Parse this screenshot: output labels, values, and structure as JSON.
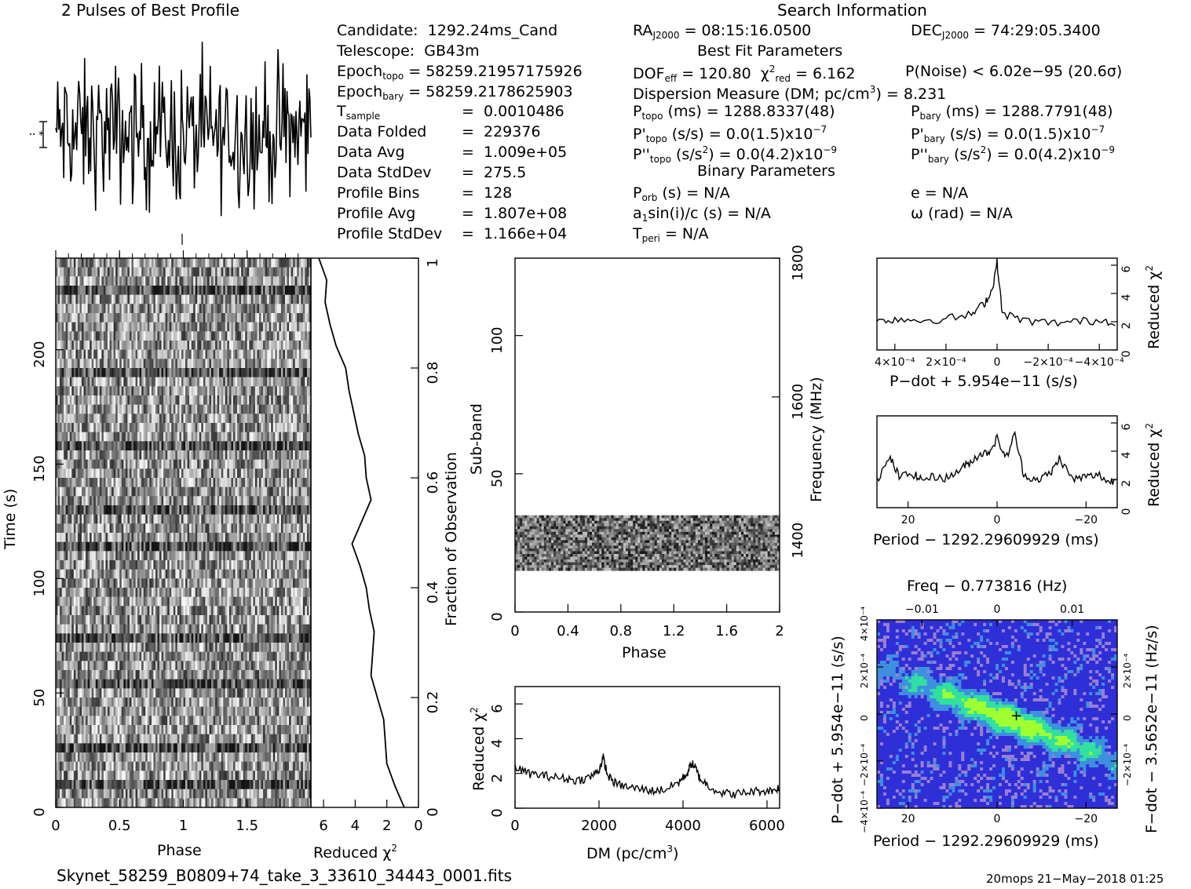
{
  "colors": {
    "ink": "#000000",
    "panel_bg": "#ffffff",
    "heat_low": "#2f2fd8",
    "heat_mid": "#3f8fe0",
    "heat_high": "#30e0a0",
    "heat_peak": "#a0ff30",
    "marker": "#000000"
  },
  "header": {
    "profile_title": "2 Pulses of Best Profile",
    "search_title": "Search Information",
    "best_fit_title": "Best Fit Parameters",
    "binary_title": "Binary Parameters"
  },
  "info_left": [
    {
      "label": "Candidate:",
      "value": "1292.24ms_Cand"
    },
    {
      "label": "Telescope:",
      "value": "GB43m"
    },
    {
      "label": "Epoch",
      "sub": "topo",
      "value": "= 58259.21957175926"
    },
    {
      "label": "Epoch",
      "sub": "bary",
      "value": "= 58259.2178625903"
    },
    {
      "label": "T",
      "sub": "sample",
      "value": "0.0010486"
    },
    {
      "label": "Data Folded",
      "value": "229376"
    },
    {
      "label": "Data Avg",
      "value": "1.009e+05"
    },
    {
      "label": "Data StdDev",
      "value": "275.5"
    },
    {
      "label": "Profile Bins",
      "value": "128"
    },
    {
      "label": "Profile Avg",
      "value": "1.807e+08"
    },
    {
      "label": "Profile StdDev",
      "value": "1.166e+04"
    }
  ],
  "info_right": {
    "ra": "= 08:15:16.0500",
    "dec": "= 74:29:05.3400",
    "dof": "= 120.80",
    "chi2": "= 6.162",
    "pnoise": "P(Noise) < 6.02e−95   (20.6σ)",
    "dm": "Dispersion Measure (DM; pc/cm",
    "dm_value": ") = 8.231",
    "ptopo": "(ms) =   1288.8337(48)",
    "pbary": "(ms) =   1288.7791(48)",
    "pdot_topo": "(s/s) = 0.0(1.5)x10",
    "pdot_bary": "(s/s) = 0.0(1.5)x10",
    "pddot_topo": "(s/s",
    "pddot_topo_tail": ") = 0.0(4.2)x10",
    "pddot_bary": "(s/s",
    "pddot_bary_tail": ") = 0.0(4.2)x10",
    "porb": "(s) = N/A",
    "ecc": "e = N/A",
    "a1": "a",
    "a1_tail": "sin(i)/c (s) = N/A",
    "omega": "ω (rad) = N/A",
    "tperi": "= N/A"
  },
  "footer": {
    "filename": "Skynet_58259_B0809+74_take_3_33610_34443_0001.fits",
    "stamp": "20mops 21−May−2018 01:25"
  },
  "axes": {
    "time_label": "Time (s)",
    "phase_label": "Phase",
    "redchi_label": "Reduced χ",
    "fraction_label": "Fraction of Observation",
    "subband_label": "Sub-band",
    "freq_label": "Frequency (MHz)",
    "dm_label": "DM (pc/cm",
    "pdot_label": "P−dot + 5.954e−11 (s/s)",
    "period_label": "Period − 1292.29609929 (ms)",
    "freq_top_label": "Freq − 0.773816 (Hz)",
    "fdot_label": "F−dot − 3.5652e−11 (Hz/s)"
  },
  "chart_data": [
    {
      "type": "line",
      "name": "profile",
      "title": "2 Pulses of Best Profile",
      "x_range": [
        0,
        2
      ],
      "points": 256
    },
    {
      "type": "heatmap",
      "name": "time-phase",
      "xlabel": "Phase",
      "ylabel": "Time (s)",
      "xticks": [
        "0",
        "0.5",
        "1",
        "1.5"
      ],
      "yticks": [
        "0",
        "50",
        "100",
        "150",
        "200"
      ],
      "xlim": [
        0,
        2
      ],
      "ylim": [
        0,
        240
      ]
    },
    {
      "type": "line",
      "name": "reduced-chi2-vs-time",
      "xlabel": "Reduced χ²",
      "xticks": [
        "6",
        "4",
        "2",
        "0"
      ],
      "ylabel": "Fraction of Observation",
      "yticks": [
        "0",
        "0.2",
        "0.4",
        "0.6",
        "0.8",
        "1"
      ],
      "x": [
        6.3,
        5.8,
        5.9,
        5.6,
        5.2,
        4.6,
        4.4,
        4.1,
        3.8,
        3.4,
        3.3,
        3.0,
        3.6,
        4.2,
        3.7,
        3.3,
        3.1,
        2.8,
        2.9,
        3.0,
        2.6,
        2.2,
        2.1,
        2.0,
        1.5,
        0.9
      ],
      "y": [
        1.0,
        0.96,
        0.92,
        0.88,
        0.84,
        0.8,
        0.76,
        0.72,
        0.68,
        0.64,
        0.6,
        0.56,
        0.52,
        0.48,
        0.44,
        0.4,
        0.36,
        0.32,
        0.28,
        0.24,
        0.2,
        0.16,
        0.12,
        0.08,
        0.04,
        0.0
      ]
    },
    {
      "type": "heatmap",
      "name": "subband-phase",
      "xlabel": "Phase",
      "ylabel": "Sub-band",
      "xticks": [
        "0",
        "0.4",
        "0.8",
        "1.2",
        "1.6",
        "2"
      ],
      "yticks": [
        "0",
        "50",
        "100"
      ],
      "freq_ticks": [
        "1400",
        "1600",
        "1800"
      ],
      "xlim": [
        0,
        2
      ],
      "ylim": [
        0,
        128
      ],
      "filled_band": [
        15,
        35
      ]
    },
    {
      "type": "line",
      "name": "reduced-chi2-vs-dm",
      "xlabel": "DM (pc/cm³)",
      "ylabel": "Reduced χ²",
      "xticks": [
        "0",
        "2000",
        "4000",
        "6000"
      ],
      "yticks": [
        "0",
        "2",
        "4",
        "6"
      ],
      "xlim": [
        0,
        6300
      ],
      "ylim": [
        0,
        7
      ],
      "x": [
        0,
        300,
        600,
        900,
        1200,
        1500,
        1800,
        2000,
        2100,
        2200,
        2400,
        2700,
        3000,
        3300,
        3600,
        3900,
        4100,
        4200,
        4300,
        4400,
        4600,
        4900,
        5200,
        5500,
        5800,
        6100,
        6300
      ],
      "y": [
        2.4,
        2.0,
        1.9,
        1.8,
        1.7,
        1.6,
        1.8,
        2.2,
        2.9,
        1.9,
        1.4,
        1.2,
        1.1,
        1.0,
        1.1,
        1.5,
        2.0,
        2.6,
        2.3,
        1.7,
        1.3,
        0.9,
        0.8,
        0.9,
        1.0,
        1.0,
        1.2
      ]
    },
    {
      "type": "line",
      "name": "reduced-chi2-vs-pdot",
      "xlabel": "P−dot + 5.954e−11 (s/s)",
      "ylabel": "Reduced χ²",
      "xticks": [
        "4×10⁻⁴",
        "2×10⁻⁴",
        "0",
        "−2×10⁻⁴",
        "−4×10⁻⁴"
      ],
      "yticks": [
        "0",
        "2",
        "4",
        "6"
      ],
      "ylim": [
        0,
        6.5
      ],
      "x": [
        0.00047,
        0.0004,
        0.0003,
        0.0002,
        0.0001,
        5e-05,
        2e-05,
        0.0,
        -2e-05,
        -0.0001,
        -0.0002,
        -0.0003,
        -0.0004,
        -0.00047
      ],
      "y": [
        2.0,
        2.2,
        2.1,
        2.2,
        2.5,
        3.3,
        4.2,
        6.2,
        2.6,
        2.1,
        1.9,
        2.0,
        2.1,
        2.0
      ]
    },
    {
      "type": "line",
      "name": "reduced-chi2-vs-period",
      "xlabel": "Period − 1292.29609929 (ms)",
      "ylabel": "Reduced χ²",
      "xticks": [
        "20",
        "0",
        "−20"
      ],
      "yticks": [
        "0",
        "2",
        "4",
        "6"
      ],
      "ylim": [
        0,
        6.5
      ],
      "x": [
        27,
        24,
        22,
        19,
        17,
        14,
        11,
        8,
        6,
        4,
        2,
        0,
        -2,
        -4,
        -6,
        -9,
        -12,
        -14,
        -17,
        -20,
        -23,
        -25,
        -27
      ],
      "y": [
        2.0,
        3.5,
        2.2,
        2.4,
        2.0,
        2.2,
        2.1,
        2.8,
        3.2,
        3.8,
        3.9,
        4.9,
        3.5,
        5.2,
        2.3,
        2.0,
        2.4,
        3.5,
        2.0,
        2.2,
        2.3,
        1.8,
        2.0
      ]
    },
    {
      "type": "heatmap",
      "name": "pdot-period",
      "xlabel": "Period − 1292.29609929 (ms)",
      "ylabel": "P−dot + 5.954e−11 (s/s)",
      "xticks": [
        "20",
        "0",
        "−20"
      ],
      "top_xticks": [
        "−0.01",
        "0",
        "0.01"
      ],
      "yticks": [
        "4×10⁻⁴",
        "2×10⁻⁴",
        "0",
        "−2×10⁻⁴",
        "−4×10⁻⁴"
      ],
      "right_yticks": [
        "−2×10⁻⁴",
        "0",
        "2×10⁻⁴"
      ]
    }
  ]
}
